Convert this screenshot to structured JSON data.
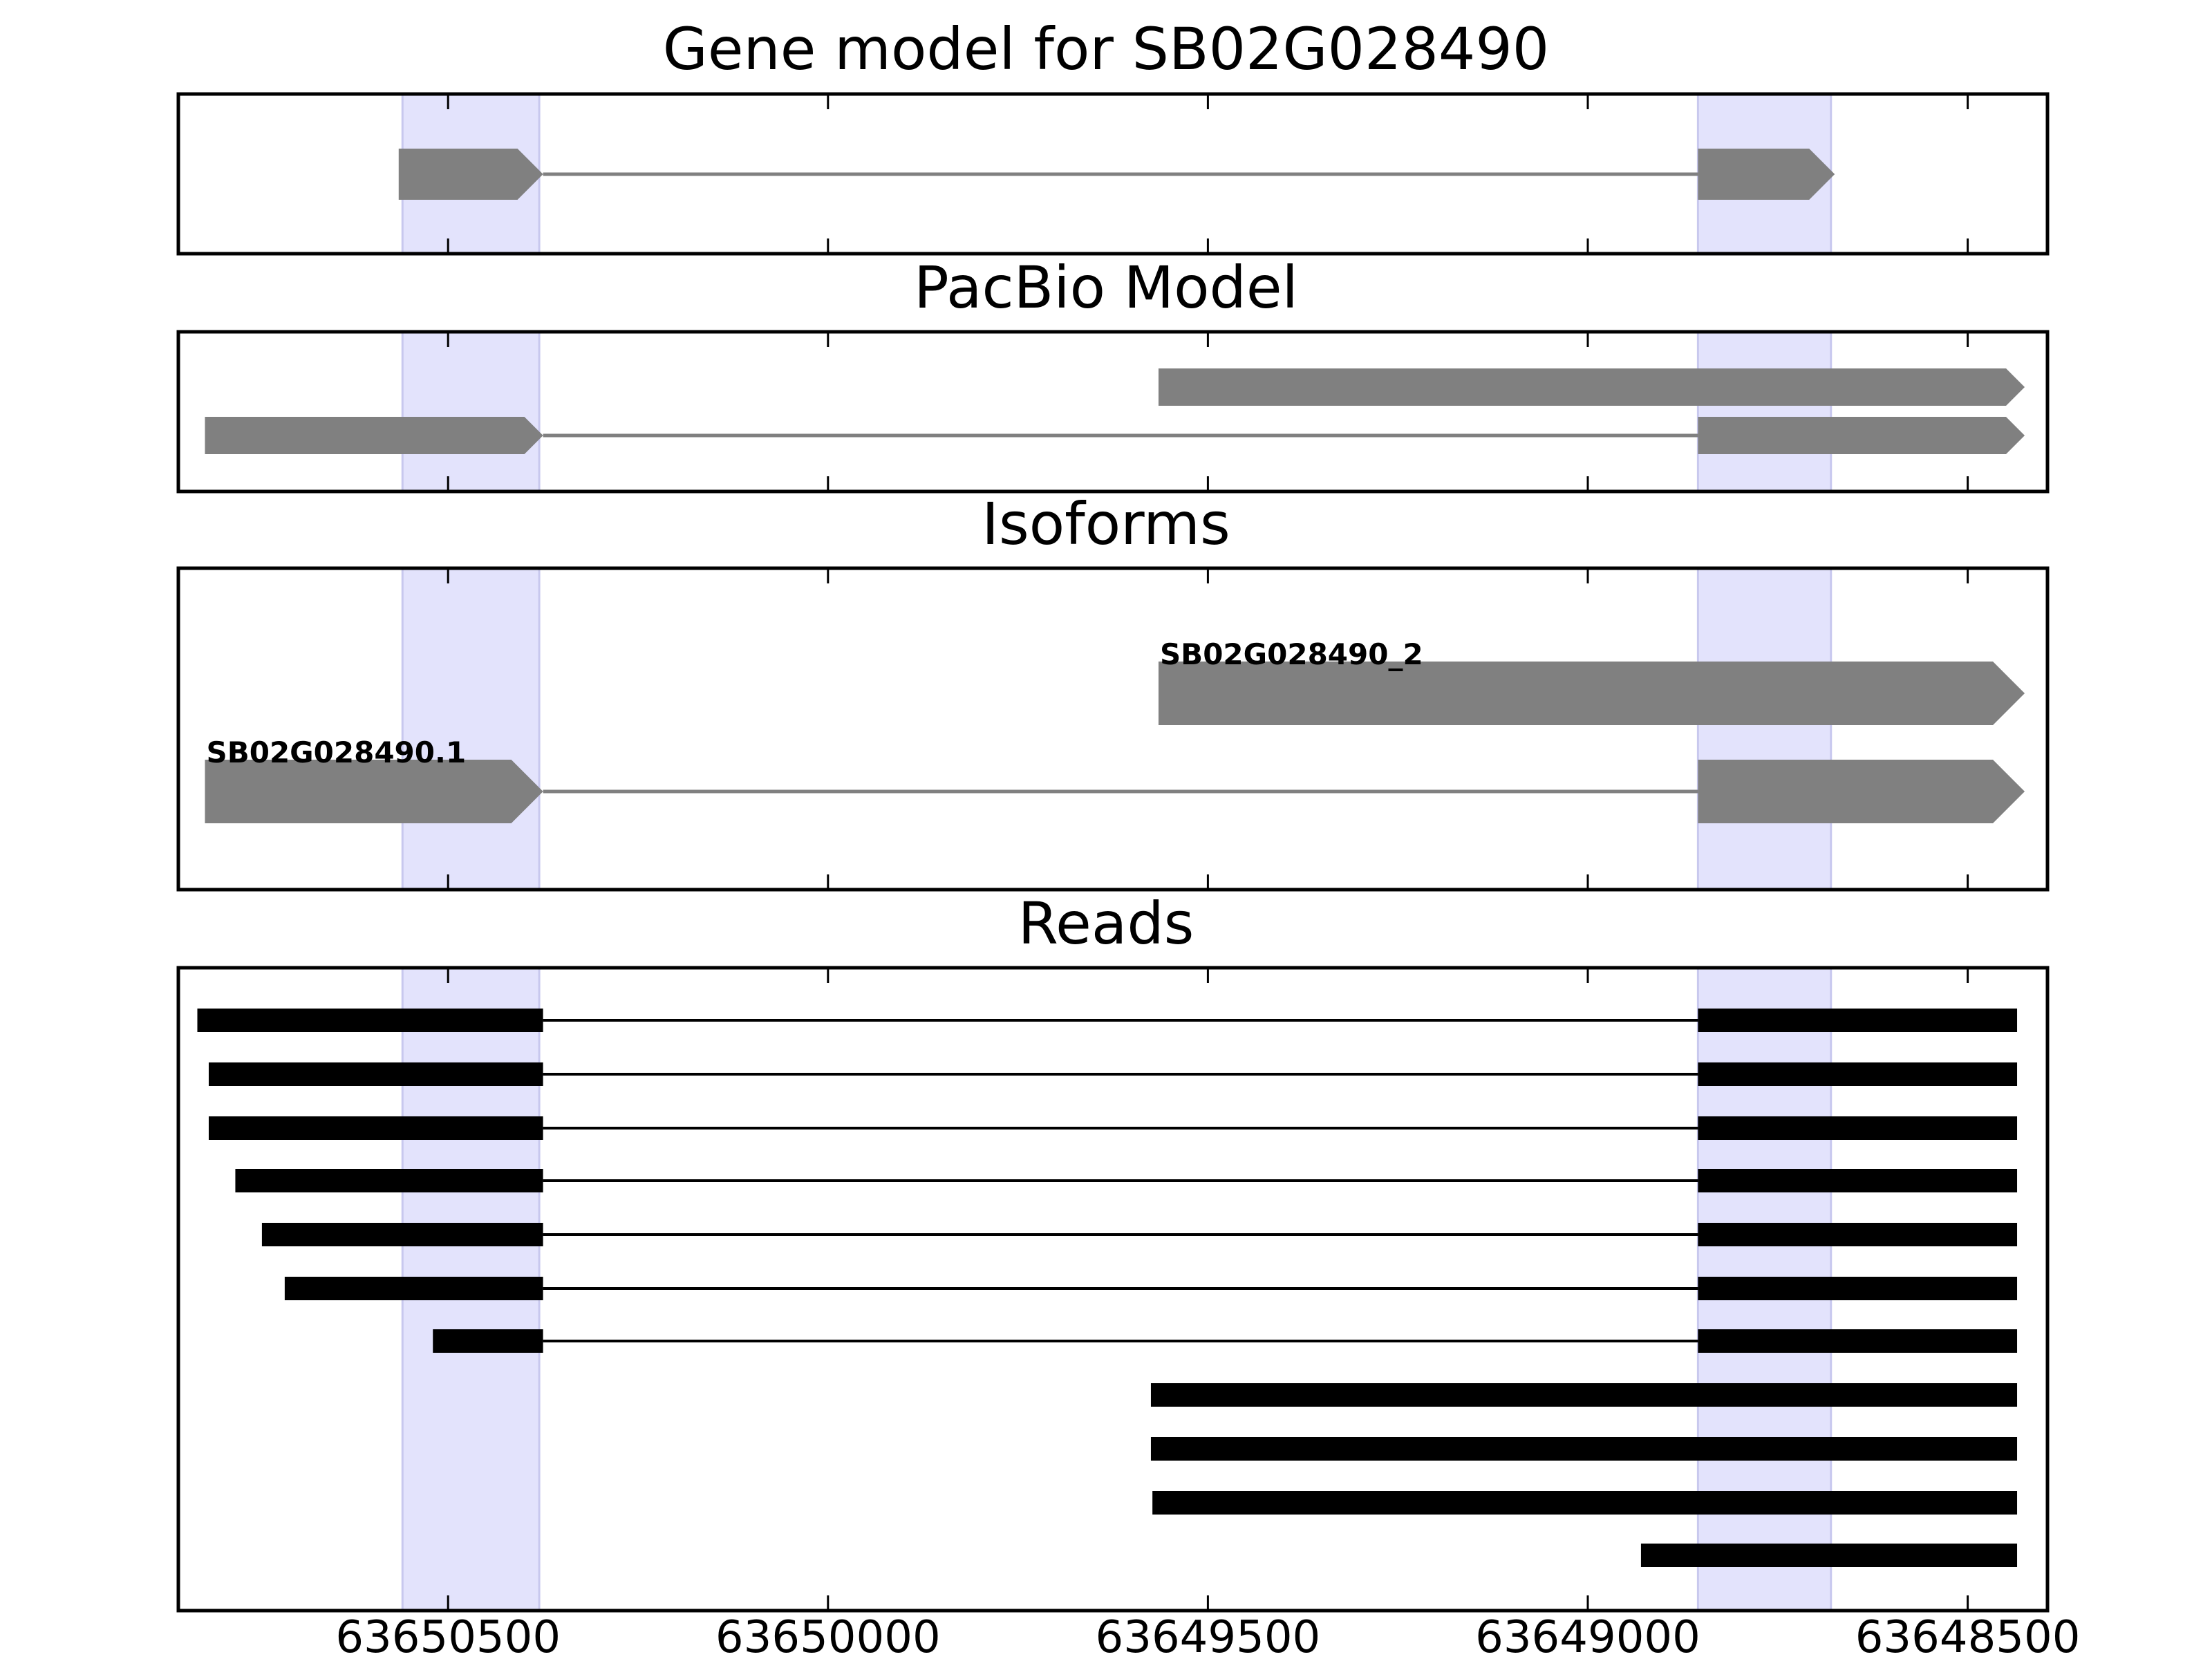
{
  "chart_data": {
    "type": "gene-track",
    "x_axis": {
      "reversed": true,
      "xlim": [
        63650855,
        63648395
      ],
      "ticks": [
        63650500,
        63650000,
        63649500,
        63649000,
        63648500
      ],
      "tick_labels": [
        "63650500",
        "63650000",
        "63649500",
        "63649000",
        "63648500"
      ]
    },
    "highlight_regions": [
      {
        "start": 63650560,
        "end": 63650380
      },
      {
        "start": 63648855,
        "end": 63648680
      }
    ],
    "panels": [
      {
        "title": "Gene model for SB02G028490",
        "transcripts": [
          {
            "label": "",
            "exons": [
              [
                63650565,
                63650375
              ],
              [
                63648855,
                63648675
              ]
            ],
            "color": "#808080"
          }
        ]
      },
      {
        "title": "PacBio Model",
        "transcripts": [
          {
            "label": "",
            "exons": [
              [
                63649565,
                63648425
              ]
            ],
            "color": "#808080"
          },
          {
            "label": "",
            "exons": [
              [
                63650820,
                63650375
              ],
              [
                63648855,
                63648425
              ]
            ],
            "color": "#808080"
          }
        ]
      },
      {
        "title": "Isoforms",
        "transcripts": [
          {
            "label": "SB02G028490_2",
            "exons": [
              [
                63649565,
                63648425
              ]
            ],
            "color": "#808080"
          },
          {
            "label": "SB02G028490.1",
            "exons": [
              [
                63650820,
                63650375
              ],
              [
                63648855,
                63648425
              ]
            ],
            "color": "#808080"
          }
        ]
      },
      {
        "title": "Reads",
        "reads": [
          {
            "exons": [
              [
                63650830,
                63650375
              ],
              [
                63648855,
                63648435
              ]
            ]
          },
          {
            "exons": [
              [
                63650815,
                63650375
              ],
              [
                63648855,
                63648435
              ]
            ]
          },
          {
            "exons": [
              [
                63650815,
                63650375
              ],
              [
                63648855,
                63648435
              ]
            ]
          },
          {
            "exons": [
              [
                63650780,
                63650375
              ],
              [
                63648855,
                63648435
              ]
            ]
          },
          {
            "exons": [
              [
                63650745,
                63650375
              ],
              [
                63648855,
                63648435
              ]
            ]
          },
          {
            "exons": [
              [
                63650715,
                63650375
              ],
              [
                63648855,
                63648435
              ]
            ]
          },
          {
            "exons": [
              [
                63650520,
                63650375
              ],
              [
                63648855,
                63648435
              ]
            ]
          },
          {
            "exons": [
              [
                63649575,
                63648435
              ]
            ]
          },
          {
            "exons": [
              [
                63649575,
                63648435
              ]
            ]
          },
          {
            "exons": [
              [
                63649573,
                63648435
              ]
            ]
          },
          {
            "exons": [
              [
                63648930,
                63648435
              ]
            ]
          }
        ]
      }
    ]
  }
}
